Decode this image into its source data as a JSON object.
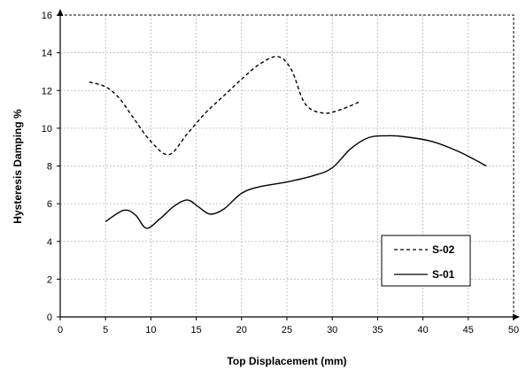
{
  "chart_data": {
    "type": "line",
    "title": "",
    "xlabel": "Top Displacement (mm)",
    "ylabel": "Hysteresis Damping %",
    "xlim": [
      0,
      50
    ],
    "ylim": [
      0,
      16
    ],
    "x_ticks": [
      0,
      5,
      10,
      15,
      20,
      25,
      30,
      35,
      40,
      45,
      50
    ],
    "y_ticks": [
      0,
      2,
      4,
      6,
      8,
      10,
      12,
      14,
      16
    ],
    "grid": true,
    "legend_position": "bottom-right",
    "series": [
      {
        "name": "S-02",
        "style": "dashed",
        "color": "#000000",
        "points": [
          [
            3.2,
            12.45
          ],
          [
            5.0,
            12.2
          ],
          [
            6.5,
            11.6
          ],
          [
            8.0,
            10.6
          ],
          [
            10.0,
            9.3
          ],
          [
            12.0,
            8.6
          ],
          [
            14.0,
            9.7
          ],
          [
            16.0,
            10.8
          ],
          [
            18.0,
            11.7
          ],
          [
            20.0,
            12.6
          ],
          [
            22.0,
            13.4
          ],
          [
            24.0,
            13.8
          ],
          [
            25.5,
            13.1
          ],
          [
            27.0,
            11.3
          ],
          [
            29.0,
            10.8
          ],
          [
            31.0,
            11.0
          ],
          [
            33.0,
            11.4
          ]
        ]
      },
      {
        "name": "S-01",
        "style": "solid",
        "color": "#000000",
        "points": [
          [
            5.0,
            5.05
          ],
          [
            7.0,
            5.65
          ],
          [
            8.3,
            5.4
          ],
          [
            9.5,
            4.7
          ],
          [
            11.0,
            5.2
          ],
          [
            12.5,
            5.85
          ],
          [
            14.0,
            6.2
          ],
          [
            15.2,
            5.85
          ],
          [
            16.5,
            5.45
          ],
          [
            18.0,
            5.7
          ],
          [
            20.0,
            6.55
          ],
          [
            22.0,
            6.9
          ],
          [
            25.0,
            7.15
          ],
          [
            28.0,
            7.5
          ],
          [
            30.0,
            7.9
          ],
          [
            32.0,
            8.9
          ],
          [
            34.0,
            9.5
          ],
          [
            36.0,
            9.6
          ],
          [
            38.0,
            9.55
          ],
          [
            41.0,
            9.3
          ],
          [
            44.0,
            8.75
          ],
          [
            47.0,
            8.0
          ]
        ]
      }
    ]
  }
}
